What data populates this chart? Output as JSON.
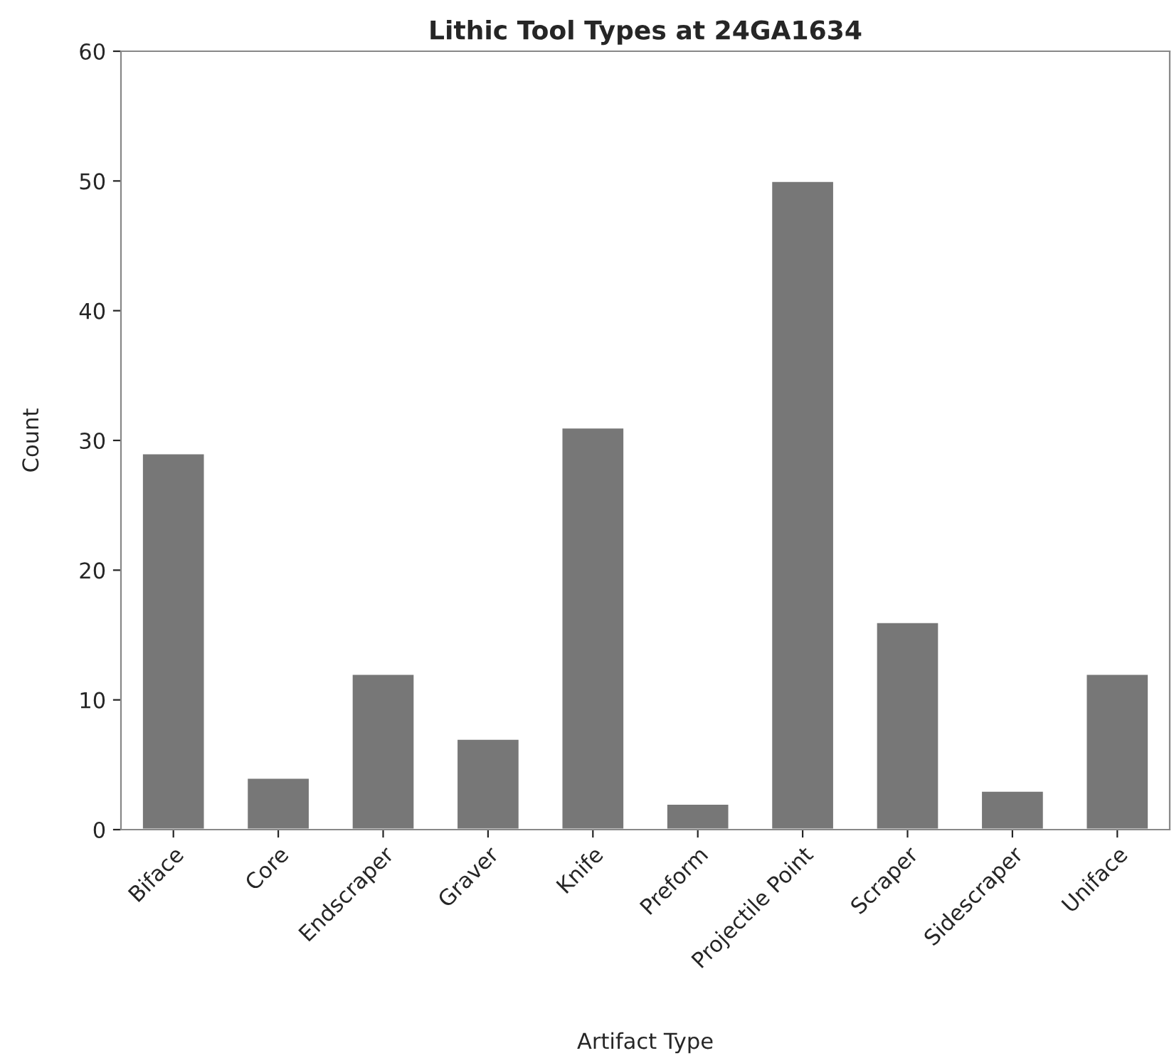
{
  "chart_data": {
    "type": "bar",
    "title": "Lithic Tool Types at 24GA1634",
    "xlabel": "Artifact Type",
    "ylabel": "Count",
    "categories": [
      "Biface",
      "Core",
      "Endscraper",
      "Graver",
      "Knife",
      "Preform",
      "Projectile Point",
      "Scraper",
      "Sidescraper",
      "Uniface"
    ],
    "values": [
      29,
      4,
      12,
      7,
      31,
      2,
      50,
      16,
      3,
      12
    ],
    "color": "#777777",
    "ylim": [
      0,
      60
    ],
    "yticks": [
      0,
      10,
      20,
      30,
      40,
      50,
      60
    ],
    "grid": false,
    "legend": false
  }
}
